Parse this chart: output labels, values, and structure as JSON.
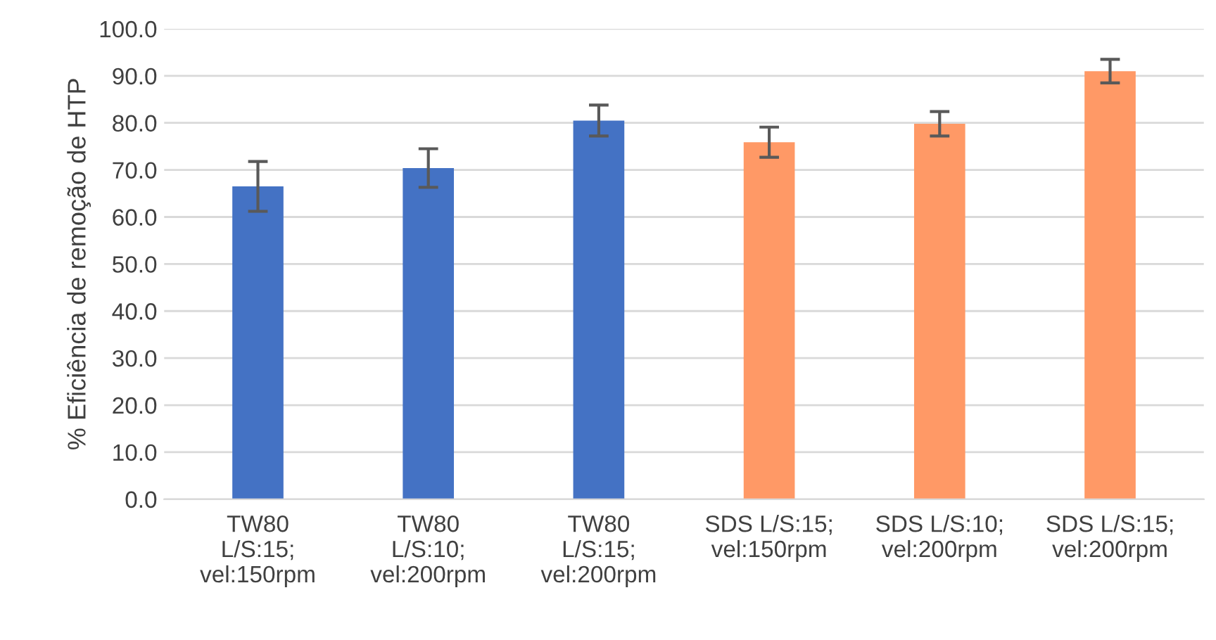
{
  "chart_data": {
    "type": "bar",
    "ylabel": "% Eficiência de remoção de HTP",
    "categories": [
      "TW80\nL/S:15;\nvel:150rpm",
      "TW80\nL/S:10;\nvel:200rpm",
      "TW80\nL/S:15;\nvel:200rpm",
      "SDS L/S:15;\nvel:150rpm",
      "SDS L/S:10;\nvel:200rpm",
      "SDS L/S:15;\nvel:200rpm"
    ],
    "values": [
      66.5,
      70.4,
      80.5,
      75.9,
      79.8,
      91.0
    ],
    "errors": [
      5.3,
      4.1,
      3.3,
      3.2,
      2.6,
      2.5
    ],
    "colors": [
      "#4472c4",
      "#4472c4",
      "#4472c4",
      "#ff9966",
      "#ff9966",
      "#ff9966"
    ],
    "ylim": [
      0,
      100
    ],
    "yticks": [
      {
        "value": 0,
        "label": "0.0"
      },
      {
        "value": 10,
        "label": "10.0"
      },
      {
        "value": 20,
        "label": "20.0"
      },
      {
        "value": 30,
        "label": "30.0"
      },
      {
        "value": 40,
        "label": "40.0"
      },
      {
        "value": 50,
        "label": "50.0"
      },
      {
        "value": 60,
        "label": "60.0"
      },
      {
        "value": 70,
        "label": "70.0"
      },
      {
        "value": 80,
        "label": "80.0"
      },
      {
        "value": 90,
        "label": "90.0"
      },
      {
        "value": 100,
        "label": "100.0"
      }
    ],
    "grid": "y"
  }
}
